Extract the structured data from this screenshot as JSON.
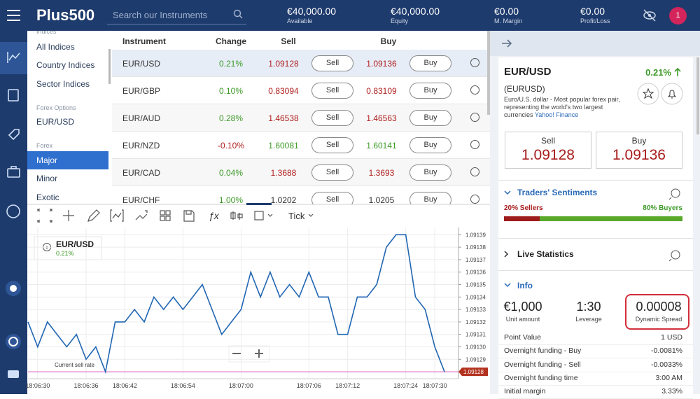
{
  "header": {
    "logo": "Plus500",
    "search_placeholder": "Search our Instruments",
    "stats": [
      {
        "value": "€40,000.00",
        "label": "Available"
      },
      {
        "value": "€40,000.00",
        "label": "Equity"
      },
      {
        "value": "€0.00",
        "label": "M. Margin"
      },
      {
        "value": "€0.00",
        "label": "Profit/Loss"
      }
    ],
    "notification_count": "1"
  },
  "nav": {
    "items": [
      {
        "text": "Indices",
        "kind": "group"
      },
      {
        "text": "All Indices",
        "kind": "item"
      },
      {
        "text": "Country Indices",
        "kind": "item"
      },
      {
        "text": "Sector Indices",
        "kind": "item"
      },
      {
        "text": "Forex Options",
        "kind": "group"
      },
      {
        "text": "EUR/USD",
        "kind": "item"
      },
      {
        "text": "Forex",
        "kind": "group"
      },
      {
        "text": "Major",
        "kind": "selected"
      },
      {
        "text": "Minor",
        "kind": "item"
      },
      {
        "text": "Exotic",
        "kind": "item"
      }
    ]
  },
  "table": {
    "columns": [
      "Instrument",
      "Change",
      "Sell",
      "Buy"
    ],
    "sell_button": "Sell",
    "buy_button": "Buy",
    "rows": [
      {
        "instrument": "EUR/USD",
        "change": "0.21%",
        "sell": "1.09128",
        "buy": "1.09136",
        "change_color": "#3c9a27",
        "sell_color": "#b01e1e",
        "buy_color": "#b01e1e"
      },
      {
        "instrument": "EUR/GBP",
        "change": "0.10%",
        "sell": "0.83094",
        "buy": "0.83109",
        "change_color": "#3c9a27",
        "sell_color": "#b01e1e",
        "buy_color": "#b01e1e"
      },
      {
        "instrument": "EUR/AUD",
        "change": "0.28%",
        "sell": "1.46538",
        "buy": "1.46563",
        "change_color": "#3c9a27",
        "sell_color": "#b01e1e",
        "buy_color": "#b01e1e"
      },
      {
        "instrument": "EUR/NZD",
        "change": "-0.10%",
        "sell": "1.60081",
        "buy": "1.60141",
        "change_color": "#b01e1e",
        "sell_color": "#3c9a27",
        "buy_color": "#3c9a27"
      },
      {
        "instrument": "EUR/CAD",
        "change": "0.04%",
        "sell": "1.3688",
        "buy": "1.3693",
        "change_color": "#3c9a27",
        "sell_color": "#b01e1e",
        "buy_color": "#b01e1e"
      },
      {
        "instrument": "EUR/CHF",
        "change": "1.00%",
        "sell": "1.0202",
        "buy": "1.0205",
        "change_color": "#3c9a27",
        "sell_color": "#333333",
        "buy_color": "#333333"
      }
    ]
  },
  "chart_toolbar": {
    "interval": "Tick"
  },
  "chart_data": {
    "type": "line",
    "legend_change": "0.21%",
    "x": [
      0,
      1,
      2,
      3,
      4,
      5,
      6,
      7,
      8,
      9,
      10,
      11,
      12,
      13,
      14,
      15,
      16,
      17,
      18,
      19,
      20,
      21,
      22,
      23,
      24,
      25,
      26,
      27,
      28,
      29,
      30,
      31,
      32,
      33,
      34,
      35,
      36,
      37,
      38,
      39,
      40,
      41,
      42,
      43
    ],
    "series": [
      {
        "name": "EUR/USD",
        "color": "#2166b3",
        "values": [
          1.09132,
          1.0913,
          1.09132,
          1.09131,
          1.0913,
          1.09131,
          1.09129,
          1.0913,
          1.09128,
          1.09132,
          1.09132,
          1.09133,
          1.09132,
          1.09134,
          1.09133,
          1.09134,
          1.09133,
          1.09134,
          1.09135,
          1.09133,
          1.09131,
          1.09132,
          1.09133,
          1.09136,
          1.09134,
          1.09136,
          1.09134,
          1.09135,
          1.09134,
          1.09136,
          1.09134,
          1.09134,
          1.09131,
          1.09131,
          1.09134,
          1.09134,
          1.09135,
          1.09138,
          1.09139,
          1.09139,
          1.09134,
          1.09133,
          1.0913,
          1.09128
        ]
      }
    ],
    "xlim": [
      0,
      43
    ],
    "xticks": [
      {
        "value": 1,
        "label": "18:06:30"
      },
      {
        "value": 6,
        "label": "18:06:36"
      },
      {
        "value": 10,
        "label": "18:06:42"
      },
      {
        "value": 16,
        "label": "18:06:54"
      },
      {
        "value": 22,
        "label": "18:07:00"
      },
      {
        "value": 29,
        "label": "18:07:06"
      },
      {
        "value": 33,
        "label": "18:07:12"
      },
      {
        "value": 39,
        "label": "18:07:24"
      },
      {
        "value": 42,
        "label": "18:07:30"
      }
    ],
    "ylim": [
      1.091275,
      1.091393
    ],
    "yticks": [
      1.09128,
      1.09129,
      {
        "value": 1.0913,
        "label": "1.09130"
      },
      1.09131,
      1.09132,
      1.09133,
      1.09134,
      1.09135,
      1.09136,
      1.09137,
      1.09138,
      1.09139
    ],
    "grid": true,
    "current_price": 1.09128,
    "current_price_label": "Current sell rate",
    "current_price_color": "#e07fcf"
  },
  "details": {
    "title": "EUR/USD",
    "change": "0.21%",
    "symbol": "(EURUSD)",
    "description": "Euro/U.S. dollar - Most popular forex pair, representing the world's two largest currencies",
    "source": "Yahoo! Finance",
    "sell_label": "Sell",
    "sell_price": "1.09128",
    "buy_label": "Buy",
    "buy_price": "1.09136",
    "sentiment_title": "Traders' Sentiments",
    "sellers": {
      "value": 20,
      "label": "20% Sellers"
    },
    "buyers": {
      "value": 80,
      "label": "80% Buyers"
    },
    "live_stats_title": "Live Statistics",
    "info_title": "Info",
    "info_cards": [
      {
        "value": "€1,000",
        "label": "Unit amount"
      },
      {
        "value": "1:30",
        "label": "Leverage"
      },
      {
        "value": "0.00008",
        "label": "Dynamic Spread"
      }
    ],
    "info_rows": [
      [
        "Point Value",
        "1 USD"
      ],
      [
        "Overnight funding - Buy",
        "-0.0081%"
      ],
      [
        "Overnight funding - Sell",
        "-0.0033%"
      ],
      [
        "Overnight funding time",
        "3:00 AM"
      ],
      [
        "Initial margin",
        "3.33%"
      ]
    ]
  }
}
